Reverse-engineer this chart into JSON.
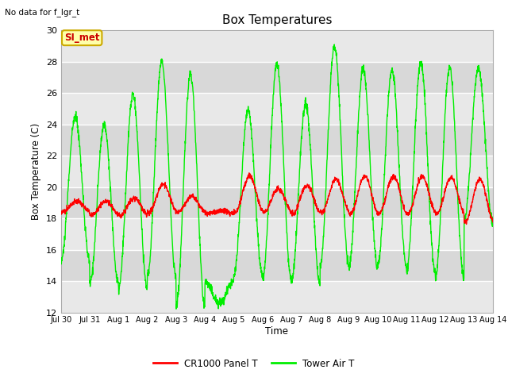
{
  "title": "Box Temperatures",
  "ylabel": "Box Temperature (C)",
  "xlabel": "Time",
  "note": "No data for f_lgr_t",
  "ylim": [
    12,
    30
  ],
  "yticks": [
    12,
    14,
    16,
    18,
    20,
    22,
    24,
    26,
    28,
    30
  ],
  "xtick_labels": [
    "Jul 30",
    "Jul 31",
    "Aug 1",
    "Aug 2",
    "Aug 3",
    "Aug 4",
    "Aug 5",
    "Aug 6",
    "Aug 7",
    "Aug 8",
    "Aug 9",
    "Aug 10",
    "Aug 11",
    "Aug 12",
    "Aug 13",
    "Aug 14"
  ],
  "legend_entries": [
    "CR1000 Panel T",
    "Tower Air T"
  ],
  "legend_colors": [
    "#ff0000",
    "#00ee00"
  ],
  "annotation_text": "SI_met",
  "annotation_bg": "#ffffaa",
  "annotation_border": "#ccaa00",
  "annotation_text_color": "#cc0000",
  "line_color_red": "#ff0000",
  "line_color_green": "#00ee00",
  "fig_bg": "#ffffff",
  "plot_bg": "#e8e8e8",
  "band_colors": [
    "#e0e0e0",
    "#d0d0d0"
  ],
  "grid_color": "#ffffff"
}
